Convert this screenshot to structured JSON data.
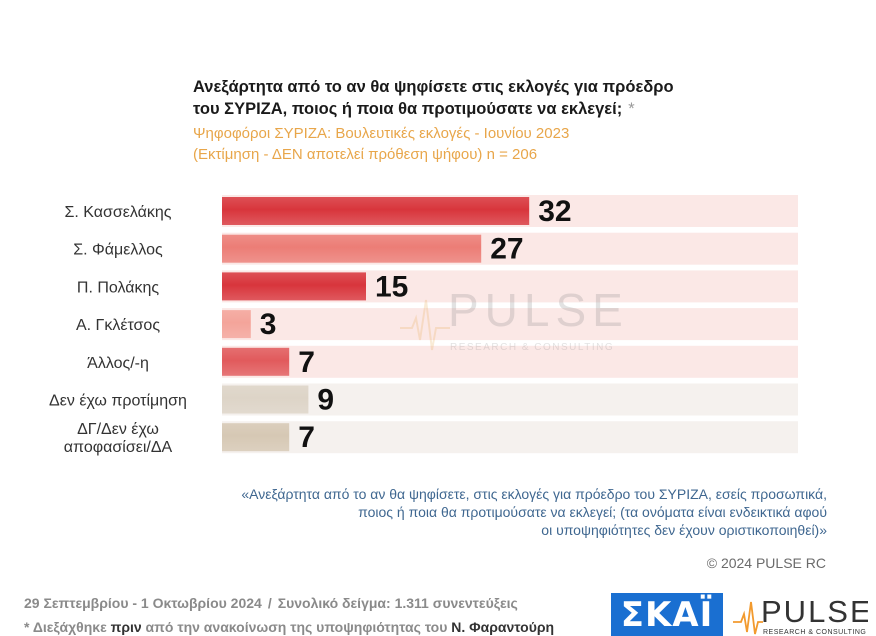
{
  "header": {
    "title_line1": "Ανεξάρτητα από το αν θα ψηφίσετε στις εκλογές για πρόεδρο",
    "title_line2": "του ΣΥΡΙΖΑ, ποιος ή ποια θα προτιμούσατε να εκλεγεί;",
    "title_asterisk": "*",
    "subtitle_line1": "Ψηφοφόροι ΣΥΡΙΖΑ: Βουλευτικές εκλογές - Ιουνίου 2023",
    "subtitle_line2": "(Εκτίμηση - ΔΕΝ αποτελεί πρόθεση ψήφου)    n = 206"
  },
  "chart_data": {
    "type": "bar",
    "orientation": "horizontal",
    "categories": [
      "Σ. Κασσελάκης",
      "Σ. Φάμελλος",
      "Π. Πολάκης",
      "Α. Γκλέτσος",
      "Άλλος/-η",
      "Δεν έχω προτίμηση",
      "ΔΓ/Δεν έχω αποφασίσει/ΔΑ"
    ],
    "category_lines": [
      [
        "Σ. Κασσελάκης"
      ],
      [
        "Σ. Φάμελλος"
      ],
      [
        "Π. Πολάκης"
      ],
      [
        "Α. Γκλέτσος"
      ],
      [
        "Άλλος/-η"
      ],
      [
        "Δεν έχω προτίμηση"
      ],
      [
        "ΔΓ/Δεν έχω",
        "αποφασίσει/ΔΑ"
      ]
    ],
    "values": [
      32,
      27,
      15,
      3,
      7,
      9,
      7
    ],
    "data_labels": [
      "32",
      "27",
      "15",
      "3",
      "7",
      "9",
      "7"
    ],
    "bar_colors": [
      "#d8353c",
      "#ec7d76",
      "#d8353c",
      "#f4a49a",
      "#e15a5c",
      "#ddd4c7",
      "#d6c8b4"
    ],
    "track_colors": [
      "#fbe8e6",
      "#fbe8e6",
      "#fbe8e6",
      "#fbe8e6",
      "#fbe8e6",
      "#f5f1ee",
      "#f5f1ee"
    ],
    "xlim": [
      0,
      60
    ],
    "grid": false,
    "legend": "none"
  },
  "watermark": {
    "big": "PULSE",
    "small": "RESEARCH & CONSULTING"
  },
  "footnote": {
    "line1": "«Ανεξάρτητα από το αν θα ψηφίσετε, στις εκλογές για πρόεδρο του ΣΥΡΙΖΑ, εσείς προσωπικά,",
    "line2": "ποιος ή ποια θα προτιμούσατε να εκλεγεί; (τα ονόματα είναι ενδεικτικά αφού",
    "line3": "οι υποψηφιότητες δεν έχουν οριστικοποιηθεί)»"
  },
  "copyright": "© 2024 PULSE RC",
  "bottom": {
    "dates": "29 Σεπτεμβρίου - 1 Οκτωβρίου 2024",
    "separator": "/",
    "sample": "Συνολικό δείγμα:  1.311 συνεντεύξεις",
    "note_part1": "* Διεξάχθηκε ",
    "note_part2": "πριν",
    "note_part3": " από την ανακοίνωση της υποψηφιότητας του ",
    "note_part4": "Ν. Φαραντούρη"
  },
  "logos": {
    "skai": "ΣΚΑΪ",
    "pulse": "PULSE",
    "pulse_small": "RESEARCH & CONSULTING"
  },
  "colors": {
    "title": "#1a1a1a",
    "subtitle": "#e8a64a",
    "footnote": "#3f6790",
    "skai_blue": "#1a6fd1",
    "pulse_orange": "#f29a2e"
  }
}
